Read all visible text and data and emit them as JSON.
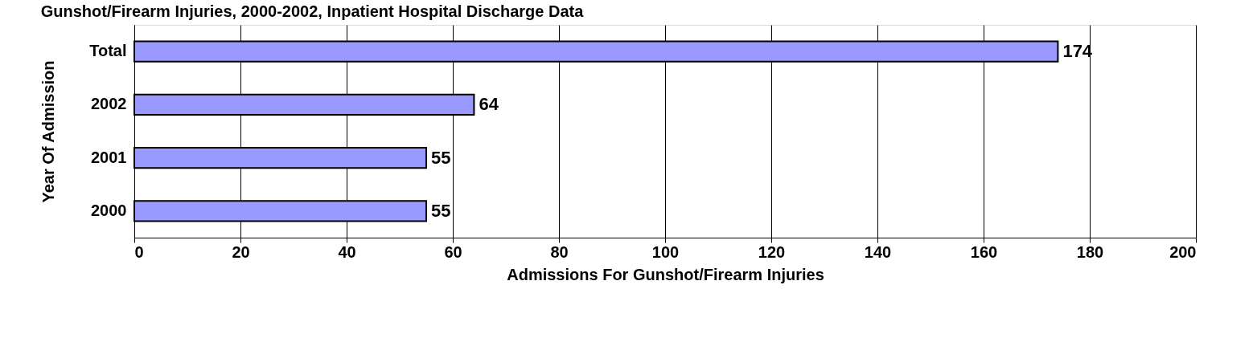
{
  "chart_data": {
    "type": "bar",
    "orientation": "horizontal",
    "title": "Gunshot/Firearm Injuries, 2000-2002, Inpatient Hospital Discharge Data",
    "xlabel": "Admissions For Gunshot/Firearm Injuries",
    "ylabel": "Year Of Admission",
    "categories": [
      "Total",
      "2002",
      "2001",
      "2000"
    ],
    "values": [
      174,
      64,
      55,
      55
    ],
    "color": "#9999ff",
    "xlim": [
      0,
      200
    ],
    "xticks": [
      0,
      20,
      40,
      60,
      80,
      100,
      120,
      140,
      160,
      180,
      200
    ],
    "grid": "x",
    "data_labels": true
  }
}
